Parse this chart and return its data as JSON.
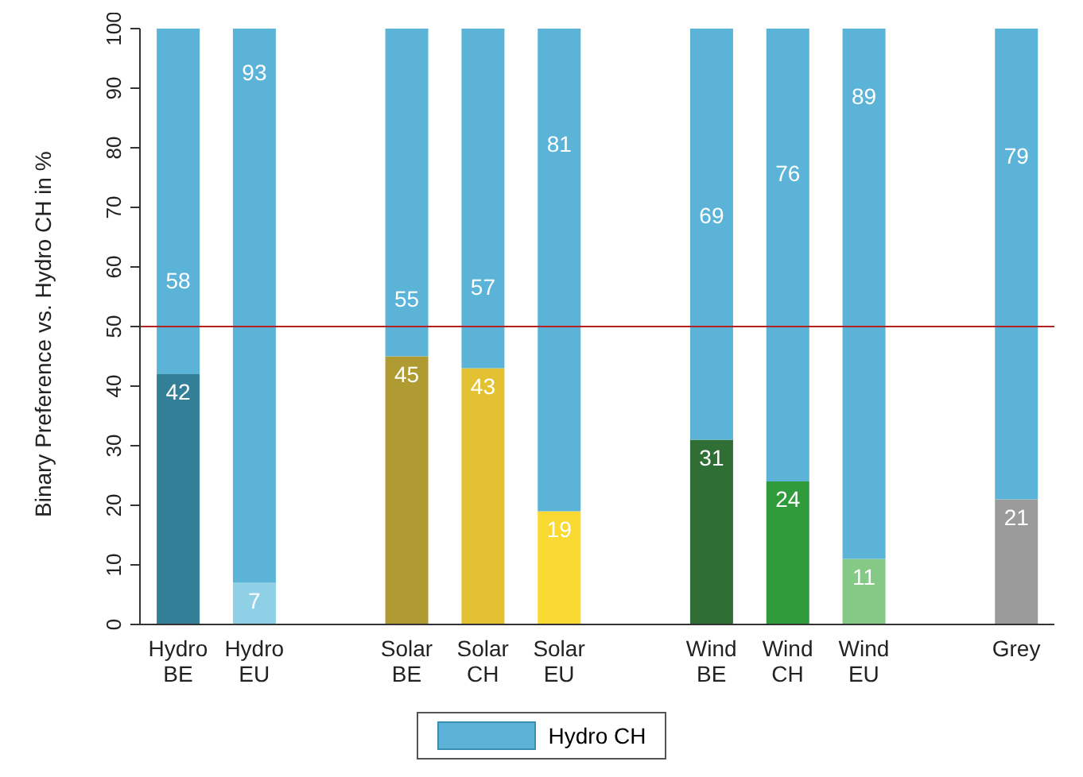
{
  "chart_data": {
    "type": "bar",
    "stacked": true,
    "ylabel": "Binary Preference vs. Hydro CH in %",
    "categories": [
      "Hydro BE",
      "Hydro EU",
      null,
      "Solar BE",
      "Solar CH",
      "Solar EU",
      null,
      "Wind BE",
      "Wind CH",
      "Wind EU",
      null,
      "Grey"
    ],
    "series": [
      {
        "colors": [
          "#347f98",
          "#8fd0e6",
          null,
          "#b09a32",
          "#e2c232",
          "#fbd933",
          null,
          "#2f6f35",
          "#2f9b3b",
          "#86c986",
          null,
          "#9b9b9b"
        ],
        "values": [
          42,
          7,
          null,
          45,
          43,
          19,
          null,
          31,
          24,
          11,
          null,
          21
        ]
      },
      {
        "name": "Hydro CH",
        "color": "#5bb4d8",
        "values": [
          58,
          93,
          null,
          55,
          57,
          81,
          null,
          69,
          76,
          89,
          null,
          79
        ]
      }
    ],
    "ylim": [
      0,
      100
    ],
    "yticks": [
      0,
      10,
      20,
      30,
      40,
      50,
      60,
      70,
      80,
      90,
      100
    ],
    "ref_lines": [
      {
        "axis": "y",
        "value": 50,
        "color": "#b22222"
      }
    ],
    "data_labels": true,
    "legend": "bottom",
    "grid": false
  }
}
